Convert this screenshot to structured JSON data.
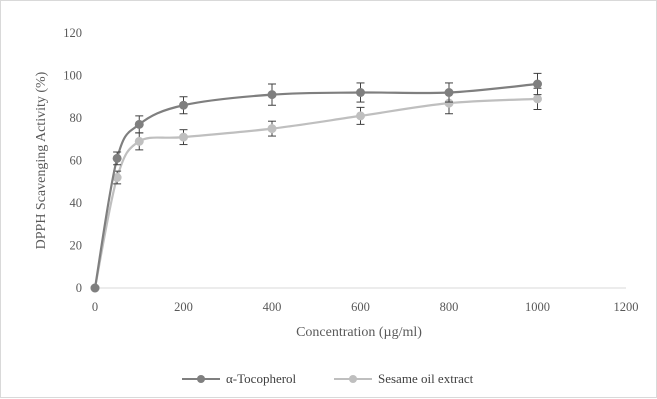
{
  "chart_data": {
    "type": "line",
    "title": "",
    "xlabel": "Concentration (µg/ml)",
    "ylabel": "DPPH Scavenging Activity  (%)",
    "xlim": [
      0,
      1200
    ],
    "ylim": [
      0,
      120
    ],
    "x_ticks": [
      0,
      200,
      400,
      600,
      800,
      1000,
      1200
    ],
    "y_ticks": [
      0,
      20,
      40,
      60,
      80,
      100,
      120
    ],
    "x_tick_labels": [
      "0",
      "200",
      "400",
      "600",
      "800",
      "1000",
      "1200"
    ],
    "y_tick_labels": [
      "0",
      "20",
      "40",
      "60",
      "80",
      "100",
      "120"
    ],
    "grid": false,
    "legend_position": "bottom",
    "x": [
      0,
      50,
      100,
      200,
      400,
      600,
      800,
      1000
    ],
    "series": [
      {
        "name": "α-Tocopherol",
        "color": "#7f7f7f",
        "values": [
          0,
          61,
          77,
          86,
          91,
          92,
          92,
          96
        ],
        "errors": [
          0,
          3,
          4,
          4,
          5,
          4.5,
          4.5,
          5
        ]
      },
      {
        "name": "Sesame oil extract",
        "color": "#bfbfbf",
        "values": [
          0,
          52,
          69,
          71,
          75,
          81,
          87,
          89
        ],
        "errors": [
          0,
          3,
          4,
          3.5,
          3.5,
          4,
          5,
          5
        ]
      }
    ]
  }
}
